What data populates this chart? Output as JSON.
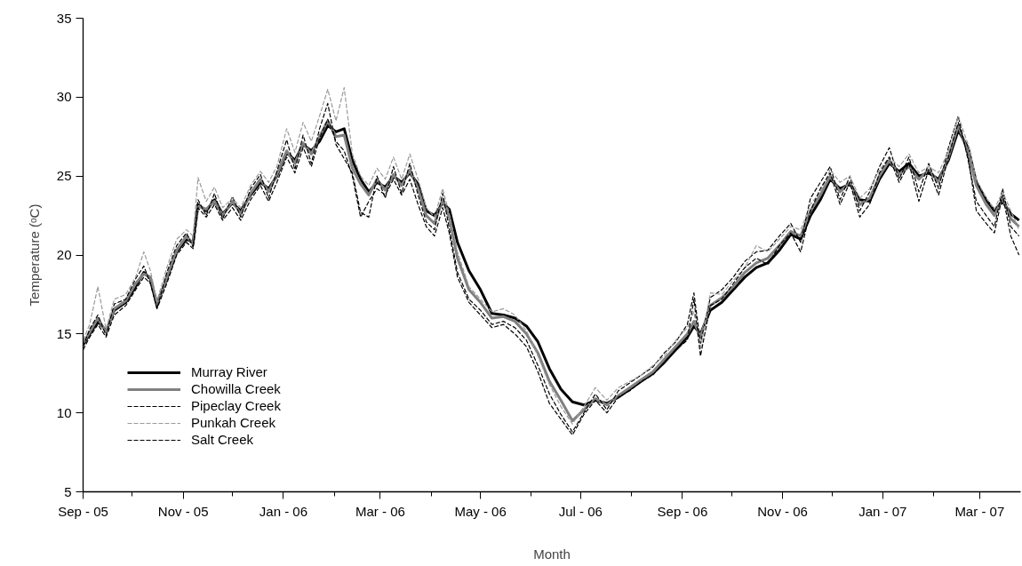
{
  "chart_data": {
    "type": "line",
    "xlabel": "Month",
    "ylabel": "Temperature (ᵒC)",
    "xlim": [
      "2005-09-01",
      "2007-03-26"
    ],
    "ylim": [
      5,
      35
    ],
    "yticks": [
      5,
      10,
      15,
      20,
      25,
      30,
      35
    ],
    "xticks": [
      {
        "value": "2005-09-01",
        "label": "Sep - 05"
      },
      {
        "value": "2005-10-01",
        "label": null
      },
      {
        "value": "2005-11-01",
        "label": "Nov - 05"
      },
      {
        "value": "2005-12-01",
        "label": null
      },
      {
        "value": "2006-01-01",
        "label": "Jan - 06"
      },
      {
        "value": "2006-02-01",
        "label": null
      },
      {
        "value": "2006-03-01",
        "label": "Mar - 06"
      },
      {
        "value": "2006-04-01",
        "label": null
      },
      {
        "value": "2006-05-01",
        "label": "May - 06"
      },
      {
        "value": "2006-06-01",
        "label": null
      },
      {
        "value": "2006-07-01",
        "label": "Jul - 06"
      },
      {
        "value": "2006-08-01",
        "label": null
      },
      {
        "value": "2006-09-01",
        "label": "Sep - 06"
      },
      {
        "value": "2006-10-01",
        "label": null
      },
      {
        "value": "2006-11-01",
        "label": "Nov - 06"
      },
      {
        "value": "2006-12-01",
        "label": null
      },
      {
        "value": "2007-01-01",
        "label": "Jan - 07"
      },
      {
        "value": "2007-02-01",
        "label": null
      },
      {
        "value": "2007-03-01",
        "label": "Mar - 07"
      }
    ],
    "grid": false,
    "legend": "bottom left",
    "marker": "none",
    "x": [
      "2005-09-01",
      "2005-09-05",
      "2005-09-10",
      "2005-09-15",
      "2005-09-20",
      "2005-09-27",
      "2005-10-03",
      "2005-10-08",
      "2005-10-12",
      "2005-10-16",
      "2005-10-22",
      "2005-10-28",
      "2005-11-03",
      "2005-11-07",
      "2005-11-10",
      "2005-11-15",
      "2005-11-20",
      "2005-11-25",
      "2005-12-01",
      "2005-12-06",
      "2005-12-12",
      "2005-12-18",
      "2005-12-23",
      "2005-12-28",
      "2006-01-03",
      "2006-01-08",
      "2006-01-13",
      "2006-01-18",
      "2006-01-23",
      "2006-01-28",
      "2006-02-02",
      "2006-02-07",
      "2006-02-12",
      "2006-02-17",
      "2006-02-22",
      "2006-02-27",
      "2006-03-04",
      "2006-03-09",
      "2006-03-14",
      "2006-03-19",
      "2006-03-24",
      "2006-03-29",
      "2006-04-03",
      "2006-04-08",
      "2006-04-12",
      "2006-04-17",
      "2006-04-24",
      "2006-05-01",
      "2006-05-08",
      "2006-05-15",
      "2006-05-22",
      "2006-05-29",
      "2006-06-05",
      "2006-06-12",
      "2006-06-19",
      "2006-06-26",
      "2006-07-03",
      "2006-07-10",
      "2006-07-17",
      "2006-07-24",
      "2006-07-31",
      "2006-08-07",
      "2006-08-14",
      "2006-08-21",
      "2006-08-28",
      "2006-09-04",
      "2006-09-08",
      "2006-09-12",
      "2006-09-18",
      "2006-09-25",
      "2006-10-02",
      "2006-10-09",
      "2006-10-16",
      "2006-10-23",
      "2006-10-30",
      "2006-11-06",
      "2006-11-12",
      "2006-11-18",
      "2006-11-24",
      "2006-11-30",
      "2006-12-06",
      "2006-12-12",
      "2006-12-18",
      "2006-12-24",
      "2006-12-30",
      "2007-01-05",
      "2007-01-11",
      "2007-01-17",
      "2007-01-23",
      "2007-01-29",
      "2007-02-04",
      "2007-02-10",
      "2007-02-16",
      "2007-02-22",
      "2007-02-27",
      "2007-03-05",
      "2007-03-10",
      "2007-03-15",
      "2007-03-20",
      "2007-03-25"
    ],
    "series": [
      {
        "name": "Murray River",
        "color": "#000000",
        "line_style": "solid",
        "values": [
          14.3,
          15.0,
          15.8,
          15.2,
          16.5,
          17.0,
          18.0,
          18.9,
          18.5,
          16.9,
          18.5,
          20.2,
          21.0,
          20.8,
          23.2,
          22.8,
          23.5,
          22.6,
          23.3,
          22.8,
          23.8,
          24.6,
          24.2,
          25.0,
          26.5,
          26.0,
          27.0,
          26.6,
          27.2,
          28.2,
          27.8,
          28.0,
          26.0,
          24.8,
          24.0,
          24.6,
          24.3,
          25.0,
          24.6,
          25.2,
          24.5,
          22.8,
          22.5,
          23.3,
          22.9,
          20.8,
          19.0,
          17.8,
          16.3,
          16.2,
          16.0,
          15.5,
          14.5,
          12.8,
          11.5,
          10.7,
          10.5,
          10.8,
          10.6,
          11.0,
          11.5,
          12.0,
          12.5,
          13.2,
          14.0,
          14.8,
          15.5,
          15.0,
          16.5,
          17.0,
          17.8,
          18.6,
          19.2,
          19.5,
          20.3,
          21.3,
          21.0,
          22.5,
          23.5,
          24.8,
          24.2,
          24.5,
          23.5,
          23.4,
          24.8,
          25.8,
          25.3,
          25.8,
          25.0,
          25.2,
          24.8,
          26.0,
          27.9,
          26.8,
          24.6,
          23.5,
          22.8,
          23.4,
          22.6,
          22.2
        ]
      },
      {
        "name": "Chowilla Creek",
        "color": "#808080",
        "line_style": "solid",
        "values": [
          14.4,
          15.1,
          16.0,
          15.1,
          16.6,
          17.1,
          18.2,
          18.8,
          18.6,
          16.8,
          18.6,
          20.3,
          21.2,
          20.7,
          23.1,
          22.9,
          23.4,
          22.5,
          23.4,
          22.6,
          23.9,
          24.8,
          24.0,
          25.1,
          26.6,
          25.8,
          27.1,
          26.4,
          27.5,
          28.5,
          27.5,
          27.6,
          25.5,
          24.5,
          23.8,
          24.8,
          24.1,
          25.1,
          24.4,
          25.4,
          24.2,
          22.5,
          22.0,
          23.5,
          22.4,
          19.8,
          17.8,
          17.0,
          16.0,
          16.1,
          15.8,
          15.0,
          13.8,
          12.0,
          10.8,
          9.5,
          10.2,
          10.9,
          10.5,
          11.1,
          11.6,
          12.1,
          12.6,
          13.4,
          14.2,
          15.0,
          15.8,
          14.8,
          16.8,
          17.3,
          18.0,
          18.9,
          19.5,
          19.8,
          20.6,
          21.5,
          21.2,
          22.8,
          23.8,
          25.0,
          24.0,
          24.6,
          23.2,
          23.6,
          25.0,
          26.0,
          25.1,
          25.6,
          24.8,
          25.4,
          24.6,
          26.2,
          28.2,
          26.5,
          24.4,
          23.2,
          22.5,
          23.6,
          22.3,
          21.8
        ]
      },
      {
        "name": "Pipeclay Creek",
        "color": "#000000",
        "line_style": "dashed",
        "values": [
          14.2,
          15.3,
          16.2,
          14.9,
          16.9,
          17.2,
          18.5,
          19.3,
          18.2,
          16.6,
          18.9,
          20.6,
          21.4,
          20.5,
          23.5,
          22.5,
          23.9,
          22.3,
          23.7,
          22.4,
          24.2,
          25.1,
          23.6,
          25.3,
          27.3,
          25.4,
          27.6,
          25.8,
          28.0,
          29.6,
          27.0,
          26.1,
          25.2,
          22.7,
          22.4,
          25.0,
          23.6,
          25.6,
          23.9,
          25.8,
          23.8,
          22.1,
          21.6,
          23.9,
          21.7,
          18.9,
          17.2,
          16.5,
          15.6,
          15.8,
          15.4,
          14.6,
          13.0,
          11.2,
          9.9,
          8.8,
          10.0,
          11.2,
          10.2,
          11.4,
          11.9,
          12.4,
          12.9,
          13.8,
          14.5,
          15.6,
          17.6,
          14.4,
          17.3,
          17.8,
          18.6,
          19.6,
          20.2,
          20.3,
          21.2,
          22.0,
          20.8,
          23.6,
          24.6,
          25.6,
          23.5,
          25.0,
          22.8,
          24.0,
          25.6,
          26.8,
          24.8,
          26.2,
          24.0,
          25.8,
          24.2,
          26.8,
          28.8,
          26.0,
          23.4,
          22.5,
          21.8,
          24.2,
          21.8,
          21.2
        ]
      },
      {
        "name": "Punkah Creek",
        "color": "#9a9a9a",
        "line_style": "dashed",
        "values": [
          14.6,
          15.6,
          18.0,
          15.3,
          17.2,
          17.5,
          18.6,
          20.2,
          19.0,
          17.1,
          19.2,
          21.0,
          21.6,
          21.2,
          24.9,
          23.4,
          24.3,
          23.0,
          23.6,
          23.0,
          24.4,
          25.3,
          24.6,
          25.6,
          28.0,
          26.5,
          28.4,
          27.2,
          28.8,
          30.5,
          28.5,
          30.6,
          26.4,
          25.0,
          24.4,
          25.5,
          24.8,
          26.2,
          24.8,
          26.4,
          24.8,
          23.0,
          22.4,
          24.2,
          22.6,
          20.2,
          18.0,
          17.2,
          16.4,
          16.6,
          16.2,
          15.2,
          13.6,
          11.8,
          10.4,
          9.3,
          10.4,
          11.6,
          10.8,
          11.6,
          12.0,
          12.4,
          13.0,
          13.6,
          14.6,
          15.4,
          16.4,
          14.0,
          17.6,
          17.5,
          18.4,
          19.2,
          20.6,
          20.2,
          21.0,
          21.8,
          21.6,
          23.2,
          24.0,
          25.4,
          24.6,
          25.0,
          23.6,
          24.2,
          25.4,
          26.2,
          25.6,
          26.4,
          25.2,
          25.6,
          25.2,
          26.6,
          28.8,
          27.0,
          24.8,
          23.6,
          22.9,
          24.0,
          22.8,
          21.6
        ]
      },
      {
        "name": "Salt Creek",
        "color": "#000000",
        "line_style": "dashed",
        "values": [
          14.0,
          14.8,
          15.6,
          14.8,
          16.2,
          16.8,
          17.8,
          18.6,
          18.2,
          16.6,
          18.2,
          20.0,
          20.8,
          20.4,
          23.0,
          22.4,
          23.2,
          22.2,
          23.0,
          22.2,
          23.5,
          24.4,
          23.4,
          24.6,
          26.2,
          25.2,
          26.8,
          25.6,
          27.4,
          28.6,
          27.2,
          26.6,
          25.0,
          22.4,
          23.4,
          24.2,
          23.8,
          24.8,
          23.8,
          24.8,
          23.2,
          21.8,
          21.2,
          23.0,
          21.4,
          18.6,
          17.0,
          16.2,
          15.4,
          15.6,
          15.0,
          14.2,
          12.6,
          10.6,
          9.6,
          8.6,
          9.9,
          10.8,
          10.0,
          11.0,
          11.4,
          12.0,
          12.4,
          13.2,
          14.0,
          14.6,
          17.2,
          13.6,
          16.8,
          17.2,
          18.2,
          19.2,
          19.8,
          19.4,
          20.6,
          21.4,
          20.2,
          22.8,
          24.2,
          25.2,
          23.2,
          24.6,
          22.4,
          23.2,
          25.2,
          26.2,
          24.6,
          25.8,
          23.4,
          25.4,
          23.8,
          26.2,
          28.4,
          26.2,
          22.8,
          22.0,
          21.4,
          23.8,
          21.2,
          20.0
        ]
      }
    ]
  }
}
